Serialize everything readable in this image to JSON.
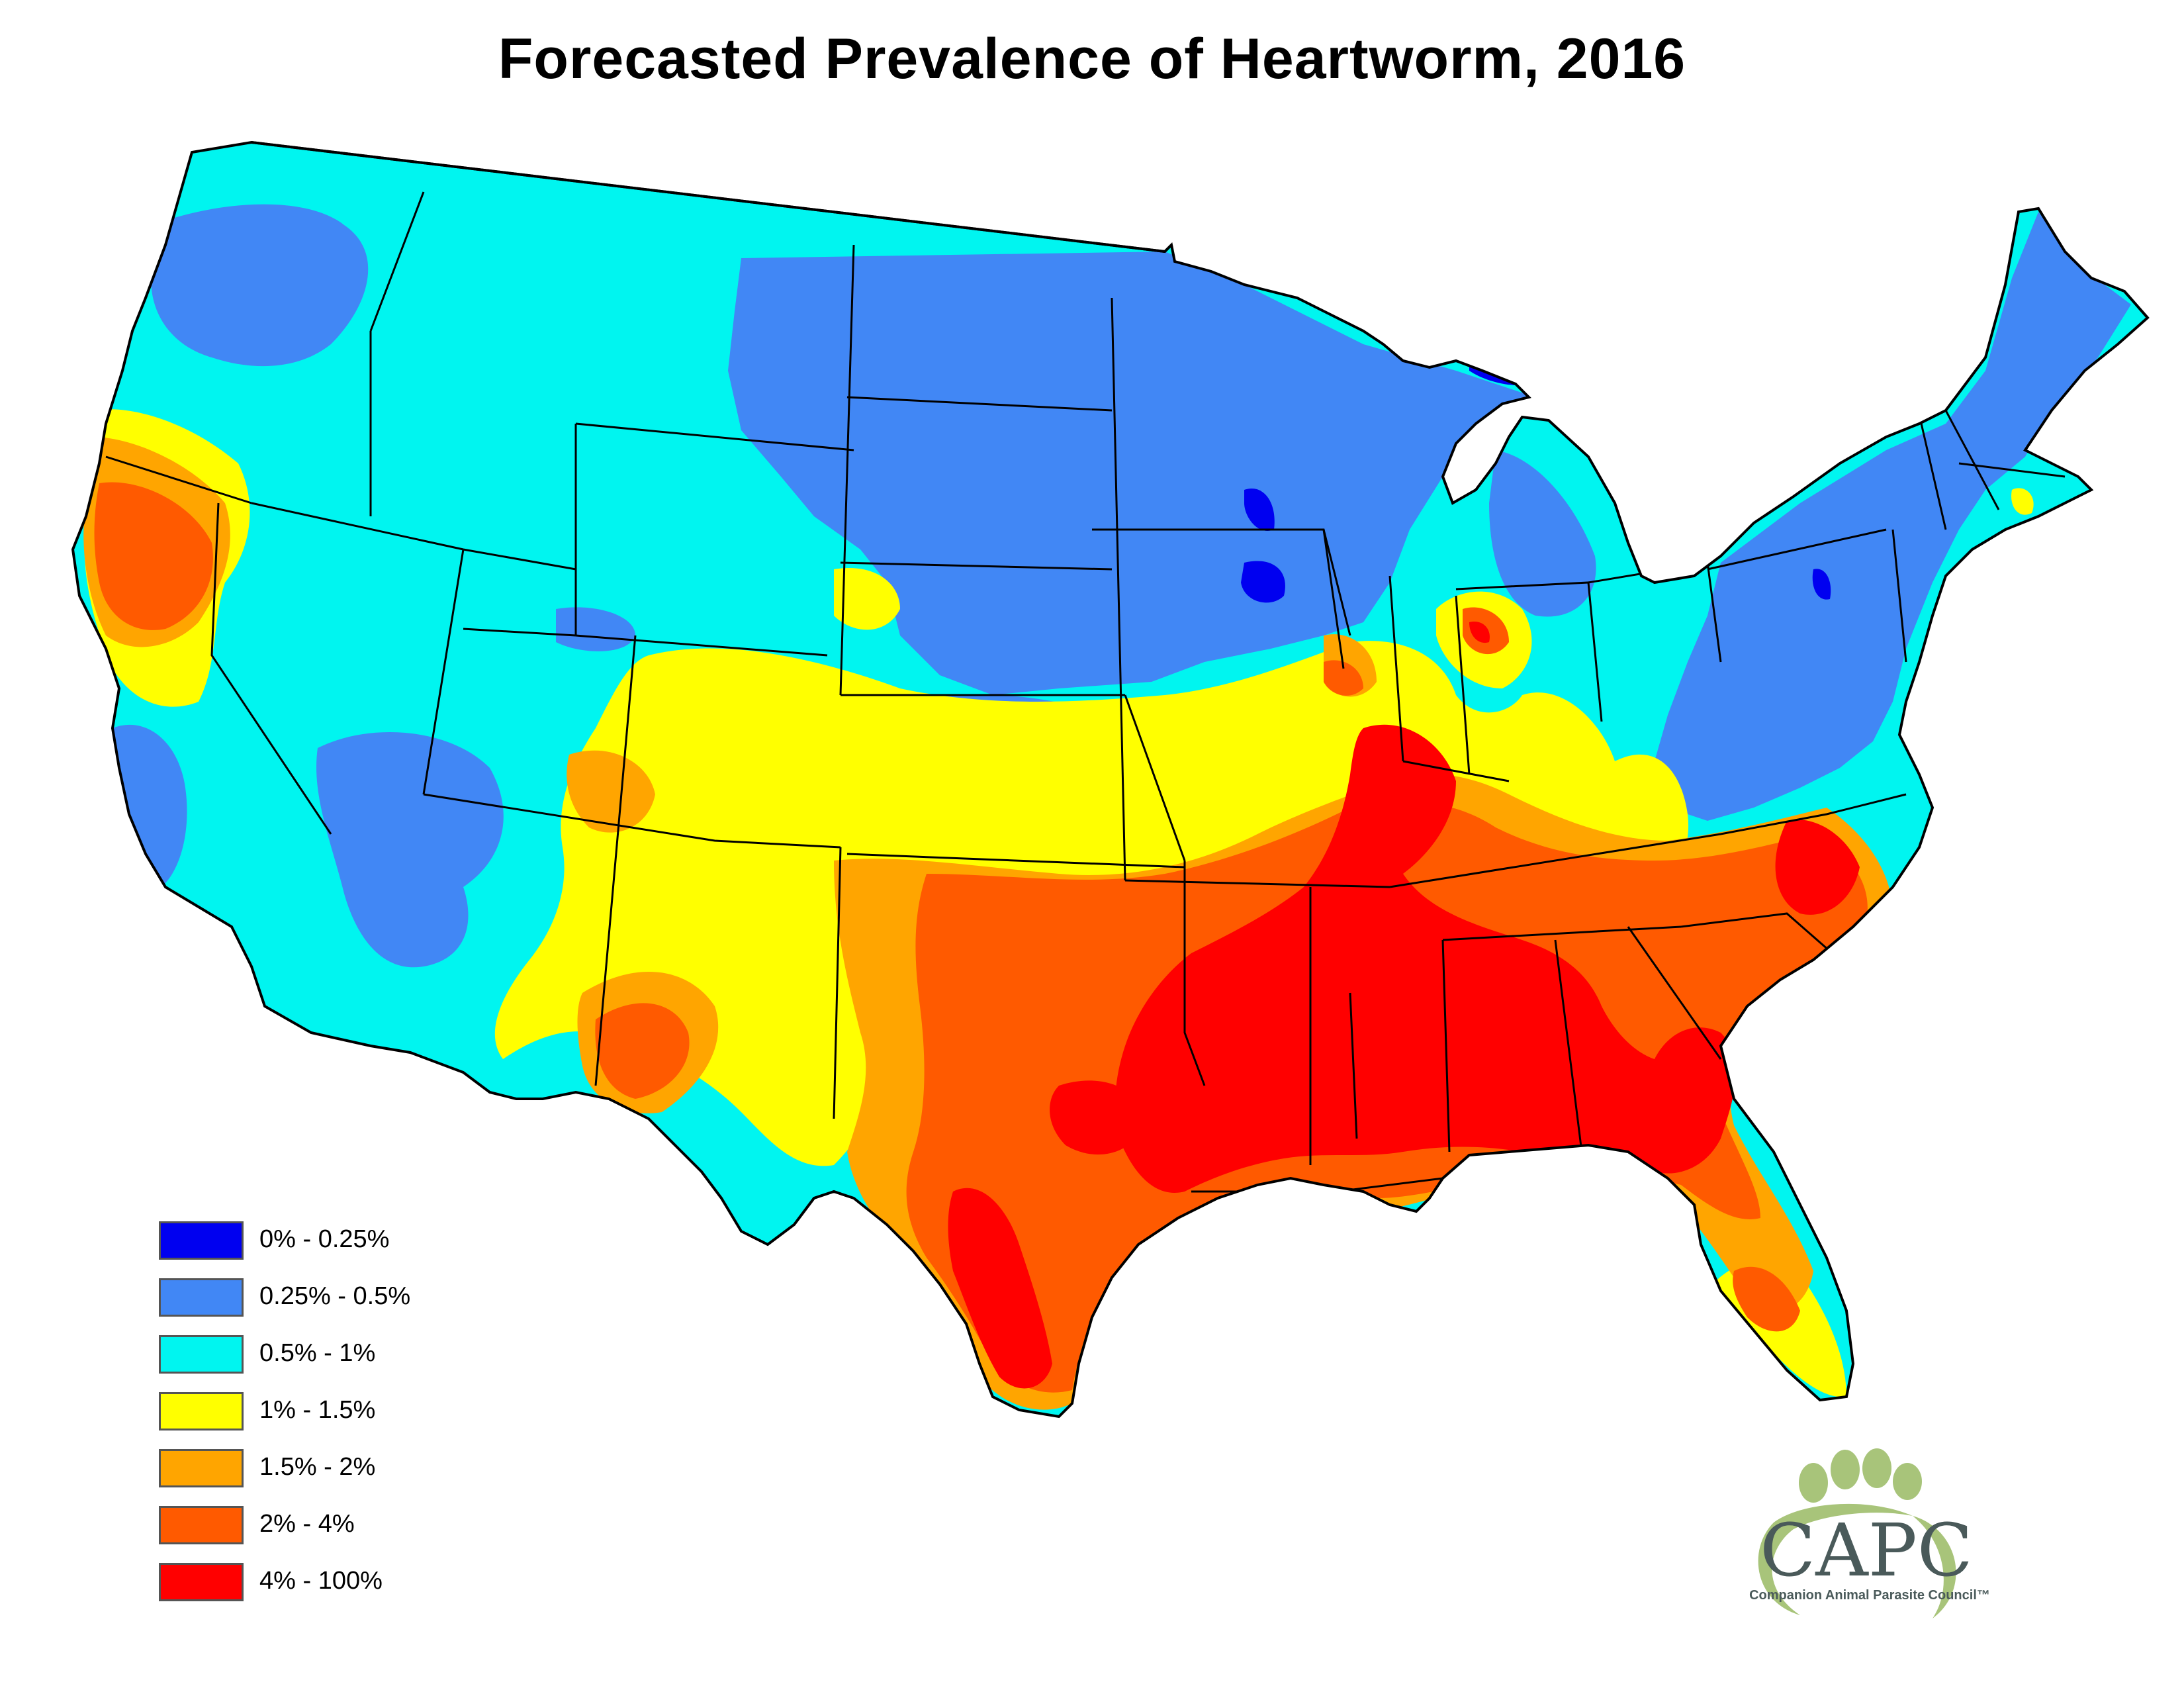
{
  "title": "Forecasted Prevalence of Heartworm, 2016",
  "legend": {
    "items": [
      {
        "label": "0% - 0.25%",
        "color": "#0000f0"
      },
      {
        "label": "0.25% - 0.5%",
        "color": "#4187f5"
      },
      {
        "label": "0.5% - 1%",
        "color": "#00f5f0"
      },
      {
        "label": "1% - 1.5%",
        "color": "#ffff00"
      },
      {
        "label": "1.5% - 2%",
        "color": "#ffa500"
      },
      {
        "label": "2% - 4%",
        "color": "#ff5a00"
      },
      {
        "label": "4% - 100%",
        "color": "#ff0000"
      }
    ]
  },
  "logo": {
    "wordmark": "CAPC",
    "tagline": "Companion Animal Parasite Council™"
  }
}
